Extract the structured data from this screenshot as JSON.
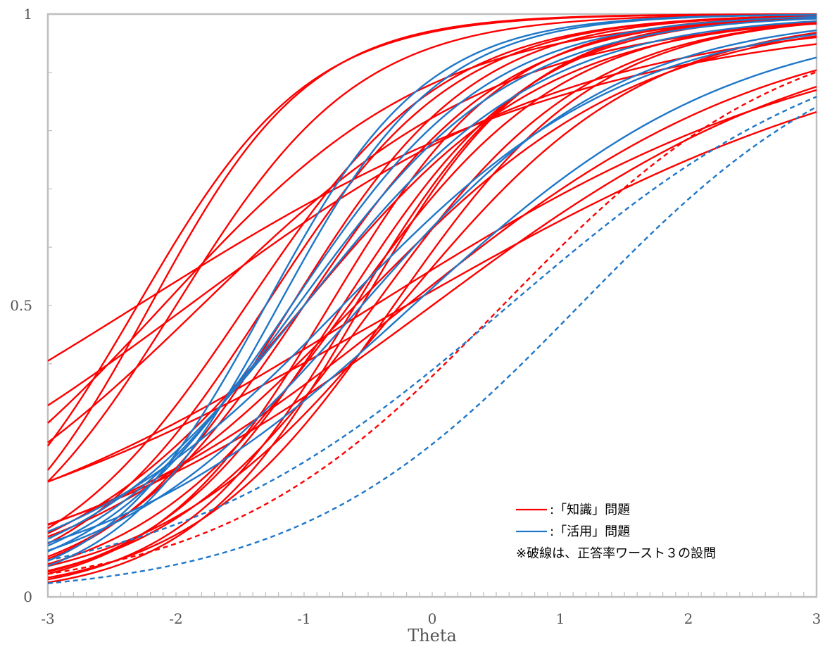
{
  "chart_data": {
    "type": "line",
    "xlabel": "Theta",
    "ylabel": "",
    "xlim": [
      -3,
      3
    ],
    "ylim": [
      0,
      1
    ],
    "x_ticks": [
      "-3",
      "-2",
      "-1",
      "0",
      "1",
      "2",
      "3"
    ],
    "y_ticks": [
      "0",
      "0.5",
      "1"
    ],
    "x_minor_step": 0.1,
    "y_minor_step": 0.1,
    "grid": false,
    "legend_position": "bottom-right",
    "legend": {
      "entries": [
        {
          "label": ":「知識」問題",
          "color": "#ff0000"
        },
        {
          "label": ":「活用」問題",
          "color": "#1f77c8"
        }
      ],
      "note": "※破線は、正答率ワースト３の設問"
    },
    "colors": {
      "knowledge": "#ff0000",
      "application": "#1f77c8"
    },
    "model": "logistic: p(θ) = 1 / (1 + exp(-a·(θ - b)))",
    "series": [
      {
        "group": "knowledge",
        "dashed": false,
        "a": 1.5,
        "b": -2.3
      },
      {
        "group": "knowledge",
        "dashed": false,
        "a": 1.6,
        "b": -2.2
      },
      {
        "group": "knowledge",
        "dashed": false,
        "a": 1.4,
        "b": -2.0
      },
      {
        "group": "knowledge",
        "dashed": false,
        "a": 0.95,
        "b": -2.1
      },
      {
        "group": "knowledge",
        "dashed": false,
        "a": 0.55,
        "b": -2.3
      },
      {
        "group": "knowledge",
        "dashed": false,
        "a": 0.65,
        "b": -1.9
      },
      {
        "group": "knowledge",
        "dashed": false,
        "a": 0.85,
        "b": -1.8
      },
      {
        "group": "knowledge",
        "dashed": false,
        "a": 1.3,
        "b": -1.45
      },
      {
        "group": "knowledge",
        "dashed": false,
        "a": 1.35,
        "b": -1.3
      },
      {
        "group": "knowledge",
        "dashed": false,
        "a": 1.4,
        "b": -1.1
      },
      {
        "group": "knowledge",
        "dashed": false,
        "a": 1.3,
        "b": -1.0
      },
      {
        "group": "knowledge",
        "dashed": false,
        "a": 1.05,
        "b": -1.0
      },
      {
        "group": "knowledge",
        "dashed": false,
        "a": 1.45,
        "b": -0.8
      },
      {
        "group": "knowledge",
        "dashed": false,
        "a": 1.2,
        "b": -0.65
      },
      {
        "group": "knowledge",
        "dashed": false,
        "a": 1.45,
        "b": -0.6
      },
      {
        "group": "knowledge",
        "dashed": false,
        "a": 1.5,
        "b": -0.55
      },
      {
        "group": "knowledge",
        "dashed": false,
        "a": 1.2,
        "b": -0.45
      },
      {
        "group": "knowledge",
        "dashed": false,
        "a": 1.35,
        "b": -0.7
      },
      {
        "group": "knowledge",
        "dashed": false,
        "a": 0.9,
        "b": -0.6
      },
      {
        "group": "knowledge",
        "dashed": false,
        "a": 1.25,
        "b": -0.3
      },
      {
        "group": "knowledge",
        "dashed": false,
        "a": 0.7,
        "b": -0.2
      },
      {
        "group": "knowledge",
        "dashed": false,
        "a": 1.05,
        "b": -0.25
      },
      {
        "group": "knowledge",
        "dashed": false,
        "a": 0.55,
        "b": -0.45
      },
      {
        "group": "knowledge",
        "dashed": false,
        "a": 0.65,
        "b": 0.0
      },
      {
        "group": "knowledge",
        "dashed": false,
        "a": 0.5,
        "b": -0.2
      },
      {
        "group": "knowledge",
        "dashed": true,
        "a": 0.9,
        "b": 0.55
      },
      {
        "group": "application",
        "dashed": false,
        "a": 1.6,
        "b": -1.3
      },
      {
        "group": "application",
        "dashed": false,
        "a": 1.6,
        "b": -1.2
      },
      {
        "group": "application",
        "dashed": false,
        "a": 1.3,
        "b": -1.1
      },
      {
        "group": "application",
        "dashed": false,
        "a": 1.2,
        "b": -1.05
      },
      {
        "group": "application",
        "dashed": false,
        "a": 1.1,
        "b": -1.0
      },
      {
        "group": "application",
        "dashed": false,
        "a": 0.9,
        "b": -0.7
      },
      {
        "group": "application",
        "dashed": false,
        "a": 1.0,
        "b": -0.55
      },
      {
        "group": "application",
        "dashed": false,
        "a": 0.8,
        "b": -0.15
      },
      {
        "group": "application",
        "dashed": true,
        "a": 0.75,
        "b": 0.6
      },
      {
        "group": "application",
        "dashed": true,
        "a": 0.9,
        "b": 1.15
      }
    ]
  }
}
